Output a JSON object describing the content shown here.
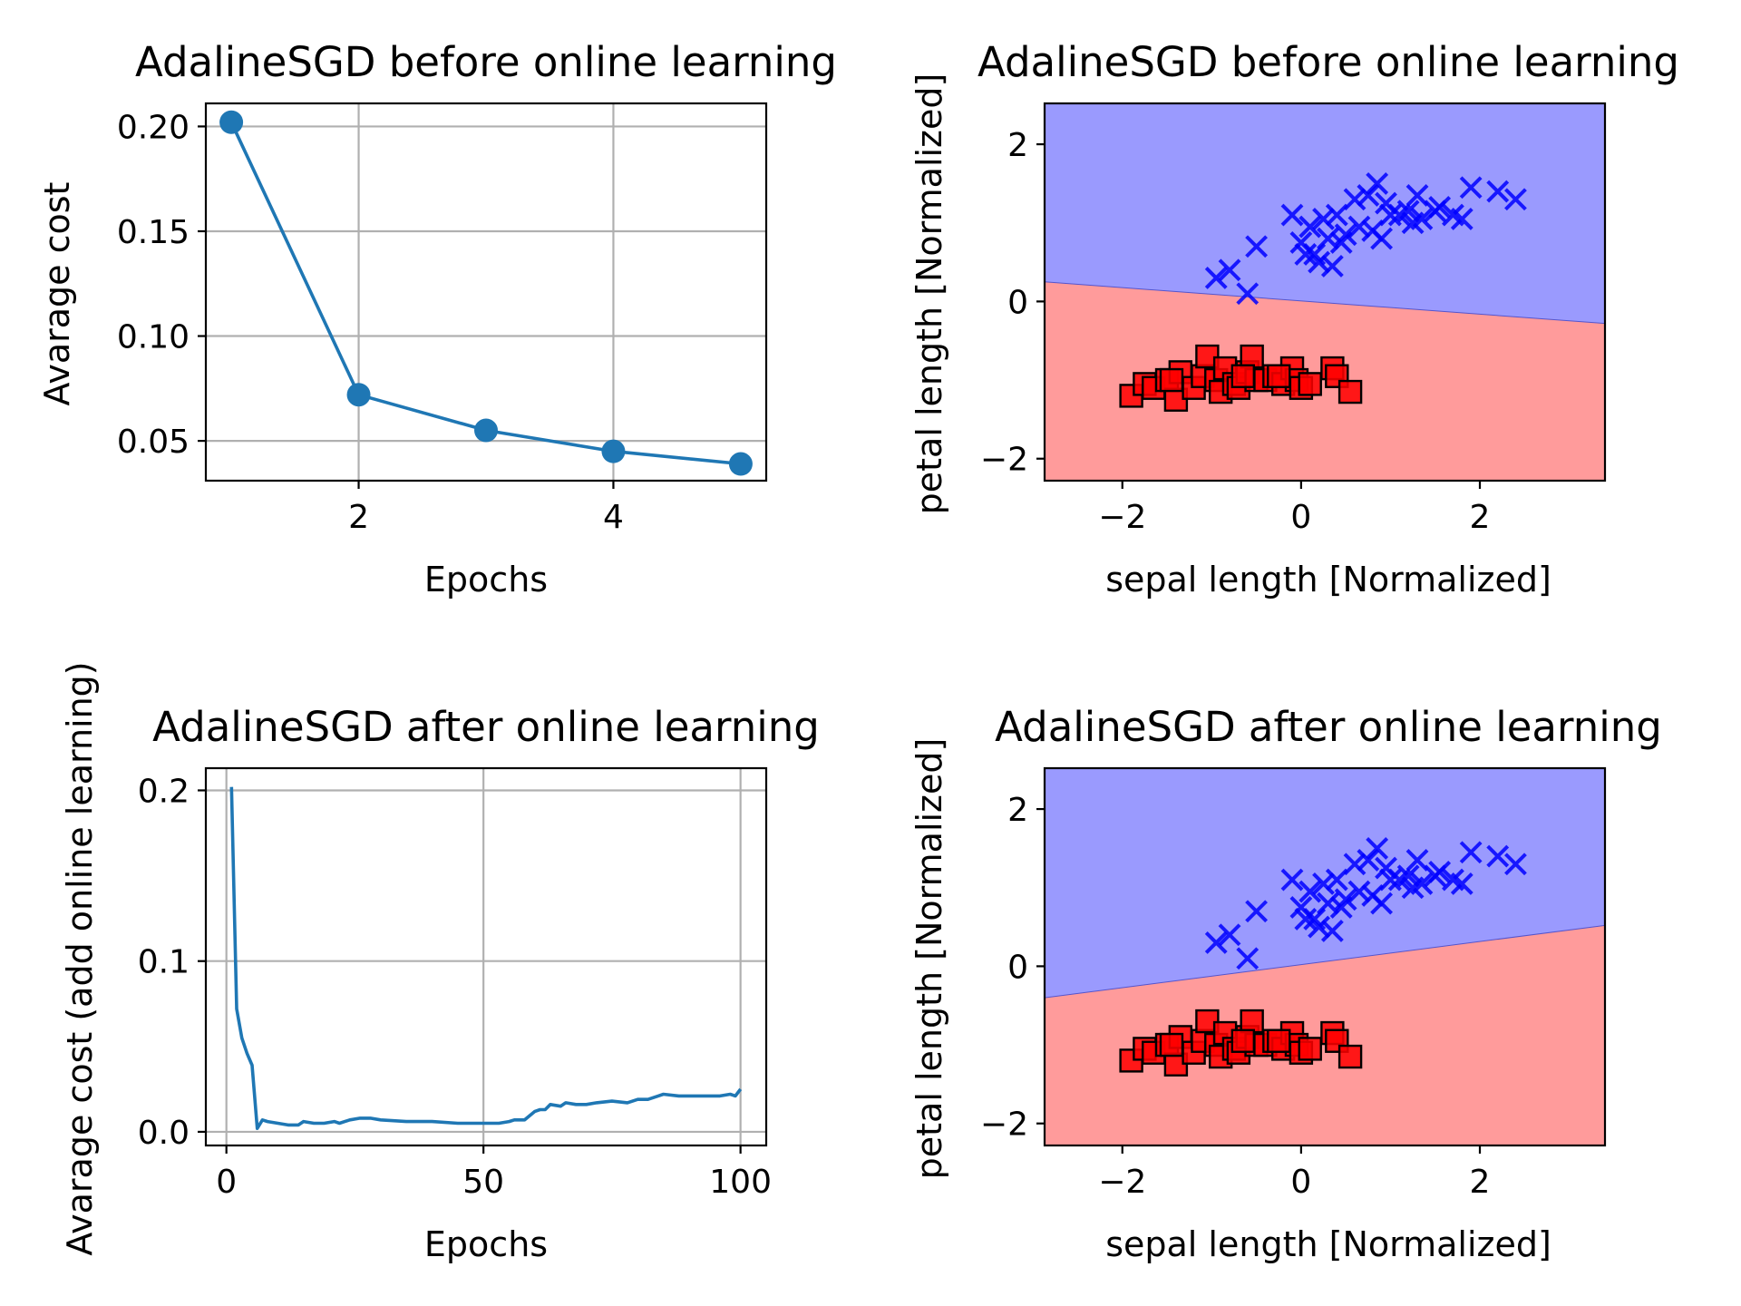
{
  "colors": {
    "line": "#1f77b4",
    "region_blue": "#9a9afe",
    "region_red": "#ff9b9b",
    "marker_blue": "#0000ff",
    "marker_red": "#ff0000",
    "grid": "#b0b0b0"
  },
  "chart_data": [
    {
      "type": "line",
      "title": "AdalineSGD before online learning",
      "xlabel": "Epochs",
      "ylabel": "Avarage cost",
      "grid": true,
      "marker": "circle",
      "xlim": [
        0.8,
        5.2
      ],
      "ylim": [
        0.031,
        0.211
      ],
      "xticks": [
        2,
        4
      ],
      "xtick_labels": [
        "2",
        "4"
      ],
      "yticks": [
        0.05,
        0.1,
        0.15,
        0.2
      ],
      "ytick_labels": [
        "0.05",
        "0.10",
        "0.15",
        "0.20"
      ],
      "x": [
        1,
        2,
        3,
        4,
        5
      ],
      "y": [
        0.202,
        0.072,
        0.055,
        0.045,
        0.039
      ]
    },
    {
      "type": "scatter",
      "title": "AdalineSGD before online learning",
      "xlabel": "sepal length [Normalized]",
      "ylabel": "petal length [Normalized]",
      "xlim": [
        -2.87,
        3.4
      ],
      "ylim": [
        -2.28,
        2.52
      ],
      "xticks": [
        -2,
        0,
        2
      ],
      "xtick_labels": [
        "−2",
        "0",
        "2"
      ],
      "yticks": [
        -2,
        0,
        2
      ],
      "ytick_labels": [
        "−2",
        "0",
        "2"
      ],
      "decision_boundary": {
        "x": [
          -2.87,
          3.4
        ],
        "y": [
          0.25,
          -0.28
        ]
      },
      "upper_region": "blue",
      "lower_region": "red",
      "series": [
        {
          "marker": "x",
          "color": "blue",
          "x": [
            0.85,
            0.6,
            0.95,
            1.2,
            1.3,
            1.55,
            1.9,
            2.2,
            2.4,
            0.75,
            1.0,
            1.5,
            1.8,
            0.4,
            0.25,
            0.1,
            -0.1,
            0.0,
            0.3,
            0.5,
            0.8,
            1.1,
            0.15,
            0.35,
            0.05,
            0.2,
            -0.5,
            -0.8,
            -0.95,
            -0.6,
            1.35,
            1.7,
            0.9,
            0.45,
            1.25,
            0.65
          ],
          "y": [
            1.5,
            1.3,
            1.25,
            1.15,
            1.35,
            1.2,
            1.45,
            1.4,
            1.3,
            1.35,
            1.1,
            1.15,
            1.05,
            1.1,
            1.05,
            0.95,
            1.1,
            0.75,
            0.8,
            0.85,
            0.9,
            1.1,
            0.6,
            0.45,
            0.6,
            0.5,
            0.7,
            0.4,
            0.3,
            0.1,
            1.05,
            1.1,
            0.8,
            0.75,
            1.0,
            0.95
          ]
        },
        {
          "marker": "square",
          "color": "red",
          "x": [
            -1.9,
            -1.75,
            -1.65,
            -1.5,
            -1.4,
            -1.35,
            -1.2,
            -1.1,
            -1.05,
            -0.95,
            -0.9,
            -0.85,
            -0.75,
            -0.7,
            -0.6,
            -0.55,
            -0.5,
            -0.4,
            -0.3,
            -0.2,
            -0.1,
            -0.05,
            0.0,
            0.1,
            0.35,
            0.4,
            0.55,
            -1.45,
            -0.65,
            -0.25
          ],
          "y": [
            -1.2,
            -1.05,
            -1.1,
            -1.0,
            -1.25,
            -0.9,
            -1.1,
            -0.95,
            -0.7,
            -1.0,
            -1.15,
            -0.85,
            -1.05,
            -1.1,
            -0.9,
            -0.7,
            -1.0,
            -1.0,
            -0.95,
            -1.05,
            -0.85,
            -1.0,
            -1.1,
            -1.05,
            -0.85,
            -0.95,
            -1.15,
            -1.0,
            -0.95,
            -0.95
          ]
        }
      ]
    },
    {
      "type": "line",
      "title": "AdalineSGD after online learning",
      "xlabel": "Epochs",
      "ylabel": "Avarage cost (add online learning)",
      "grid": true,
      "marker": "none",
      "xlim": [
        -4,
        105
      ],
      "ylim": [
        -0.008,
        0.213
      ],
      "xticks": [
        0,
        50,
        100
      ],
      "xtick_labels": [
        "0",
        "50",
        "100"
      ],
      "yticks": [
        0.0,
        0.1,
        0.2
      ],
      "ytick_labels": [
        "0.0",
        "0.1",
        "0.2"
      ],
      "x": [
        1,
        2,
        3,
        4,
        5,
        6,
        7,
        8,
        10,
        12,
        14,
        15,
        17,
        19,
        21,
        22,
        24,
        26,
        28,
        30,
        35,
        40,
        45,
        50,
        53,
        55,
        56,
        58,
        60,
        61,
        62,
        63,
        65,
        66,
        68,
        70,
        72,
        75,
        78,
        80,
        82,
        84,
        85,
        88,
        92,
        96,
        98,
        99,
        100
      ],
      "y": [
        0.202,
        0.072,
        0.055,
        0.046,
        0.039,
        0.002,
        0.007,
        0.006,
        0.005,
        0.004,
        0.004,
        0.006,
        0.005,
        0.005,
        0.006,
        0.005,
        0.007,
        0.008,
        0.008,
        0.007,
        0.006,
        0.006,
        0.005,
        0.005,
        0.005,
        0.006,
        0.007,
        0.007,
        0.012,
        0.013,
        0.013,
        0.016,
        0.015,
        0.017,
        0.016,
        0.016,
        0.017,
        0.018,
        0.017,
        0.019,
        0.019,
        0.021,
        0.022,
        0.021,
        0.021,
        0.021,
        0.022,
        0.021,
        0.025
      ]
    },
    {
      "type": "scatter",
      "title": "AdalineSGD after online learning",
      "xlabel": "sepal length [Normalized]",
      "ylabel": "petal length [Normalized]",
      "xlim": [
        -2.87,
        3.4
      ],
      "ylim": [
        -2.28,
        2.52
      ],
      "xticks": [
        -2,
        0,
        2
      ],
      "xtick_labels": [
        "−2",
        "0",
        "2"
      ],
      "yticks": [
        -2,
        0,
        2
      ],
      "ytick_labels": [
        "−2",
        "0",
        "2"
      ],
      "decision_boundary": {
        "x": [
          -2.87,
          3.4
        ],
        "y": [
          -0.4,
          0.52
        ]
      },
      "upper_region": "blue",
      "lower_region": "red",
      "series": [
        {
          "marker": "x",
          "color": "blue",
          "x": [
            0.85,
            0.6,
            0.95,
            1.2,
            1.3,
            1.55,
            1.9,
            2.2,
            2.4,
            0.75,
            1.0,
            1.5,
            1.8,
            0.4,
            0.25,
            0.1,
            -0.1,
            0.0,
            0.3,
            0.5,
            0.8,
            1.1,
            0.15,
            0.35,
            0.05,
            0.2,
            -0.5,
            -0.8,
            -0.95,
            -0.6,
            1.35,
            1.7,
            0.9,
            0.45,
            1.25,
            0.65
          ],
          "y": [
            1.5,
            1.3,
            1.25,
            1.15,
            1.35,
            1.2,
            1.45,
            1.4,
            1.3,
            1.35,
            1.1,
            1.15,
            1.05,
            1.1,
            1.05,
            0.95,
            1.1,
            0.75,
            0.8,
            0.85,
            0.9,
            1.1,
            0.6,
            0.45,
            0.6,
            0.5,
            0.7,
            0.4,
            0.3,
            0.1,
            1.05,
            1.1,
            0.8,
            0.75,
            1.0,
            0.95
          ]
        },
        {
          "marker": "square",
          "color": "red",
          "x": [
            -1.9,
            -1.75,
            -1.65,
            -1.5,
            -1.4,
            -1.35,
            -1.2,
            -1.1,
            -1.05,
            -0.95,
            -0.9,
            -0.85,
            -0.75,
            -0.7,
            -0.6,
            -0.55,
            -0.5,
            -0.4,
            -0.3,
            -0.2,
            -0.1,
            -0.05,
            0.0,
            0.1,
            0.35,
            0.4,
            0.55,
            -1.45,
            -0.65,
            -0.25
          ],
          "y": [
            -1.2,
            -1.05,
            -1.1,
            -1.0,
            -1.25,
            -0.9,
            -1.1,
            -0.95,
            -0.7,
            -1.0,
            -1.15,
            -0.85,
            -1.05,
            -1.1,
            -0.9,
            -0.7,
            -1.0,
            -1.0,
            -0.95,
            -1.05,
            -0.85,
            -1.0,
            -1.1,
            -1.05,
            -0.85,
            -0.95,
            -1.15,
            -1.0,
            -0.95,
            -0.95
          ]
        }
      ]
    }
  ]
}
